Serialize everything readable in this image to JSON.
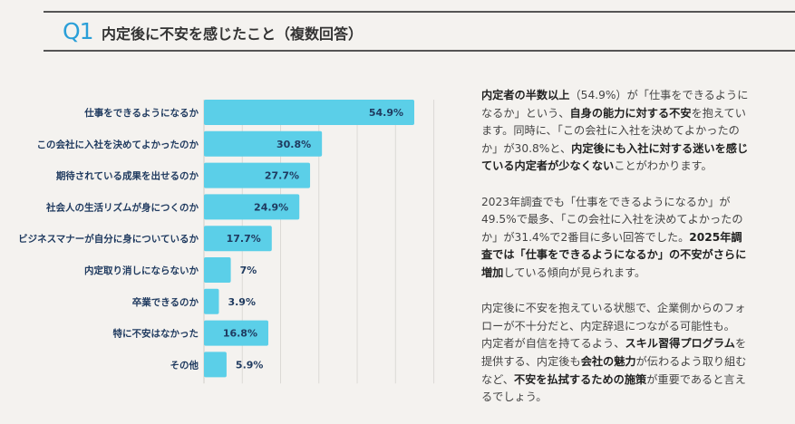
{
  "header": {
    "q_label": "Q1",
    "title": "内定後に不安を感じたこと（複数回答）"
  },
  "chart_data": {
    "type": "bar",
    "orientation": "horizontal",
    "categories": [
      "仕事をできるようになるか",
      "この会社に入社を決めてよかったのか",
      "期待されている成果を出せるのか",
      "社会人の生活リズムが身につくのか",
      "ビジネスマナーが自分に身についているか",
      "内定取り消しにならないか",
      "卒業できるのか",
      "特に不安はなかった",
      "その他"
    ],
    "values": [
      54.9,
      30.8,
      27.7,
      24.9,
      17.7,
      7,
      3.9,
      16.8,
      5.9
    ],
    "data_labels": [
      "54.9%",
      "30.8%",
      "27.7%",
      "24.9%",
      "17.7%",
      "7%",
      "3.9%",
      "16.8%",
      "5.9%"
    ],
    "xlim": [
      0,
      60
    ],
    "grid": true,
    "bar_color": "#5bcfe8",
    "label_color": "#1f3a5f"
  },
  "commentary": {
    "paragraphs": [
      [
        {
          "t": "内定者の半数以上",
          "b": true
        },
        {
          "t": "（54.9%）が「仕事をできるようになるか」という、"
        },
        {
          "t": "自身の能力に対する不安",
          "b": true
        },
        {
          "t": "を抱えています。同時に、「この会社に入社を決めてよかったのか」が30.8%と、"
        },
        {
          "t": "内定後にも入社に対する迷いを感じている内定者が少なくない",
          "b": true
        },
        {
          "t": "ことがわかります。"
        }
      ],
      [
        {
          "t": "2023年調査でも「仕事をできるようになるか」が49.5%で最多、「この会社に入社を決めてよかったのか」が31.4%で2番目に多い回答でした。"
        },
        {
          "t": "2025年調査では「仕事をできるようになるか」の不安がさらに増加",
          "b": true
        },
        {
          "t": "している傾向が見られます。"
        }
      ],
      [
        {
          "t": "内定後に不安を抱えている状態で、企業側からのフォローが不十分だと、内定辞退につながる可能性も。"
        },
        {
          "t": "\n"
        },
        {
          "t": "内定者が自信を持てるよう、"
        },
        {
          "t": "スキル習得プログラム",
          "b": true
        },
        {
          "t": "を提供する、内定後も"
        },
        {
          "t": "会社の魅力",
          "b": true
        },
        {
          "t": "が伝わるよう取り組むなど、"
        },
        {
          "t": "不安を払拭するための施策",
          "b": true
        },
        {
          "t": "が重要であると言えるでしょう。"
        }
      ]
    ]
  }
}
